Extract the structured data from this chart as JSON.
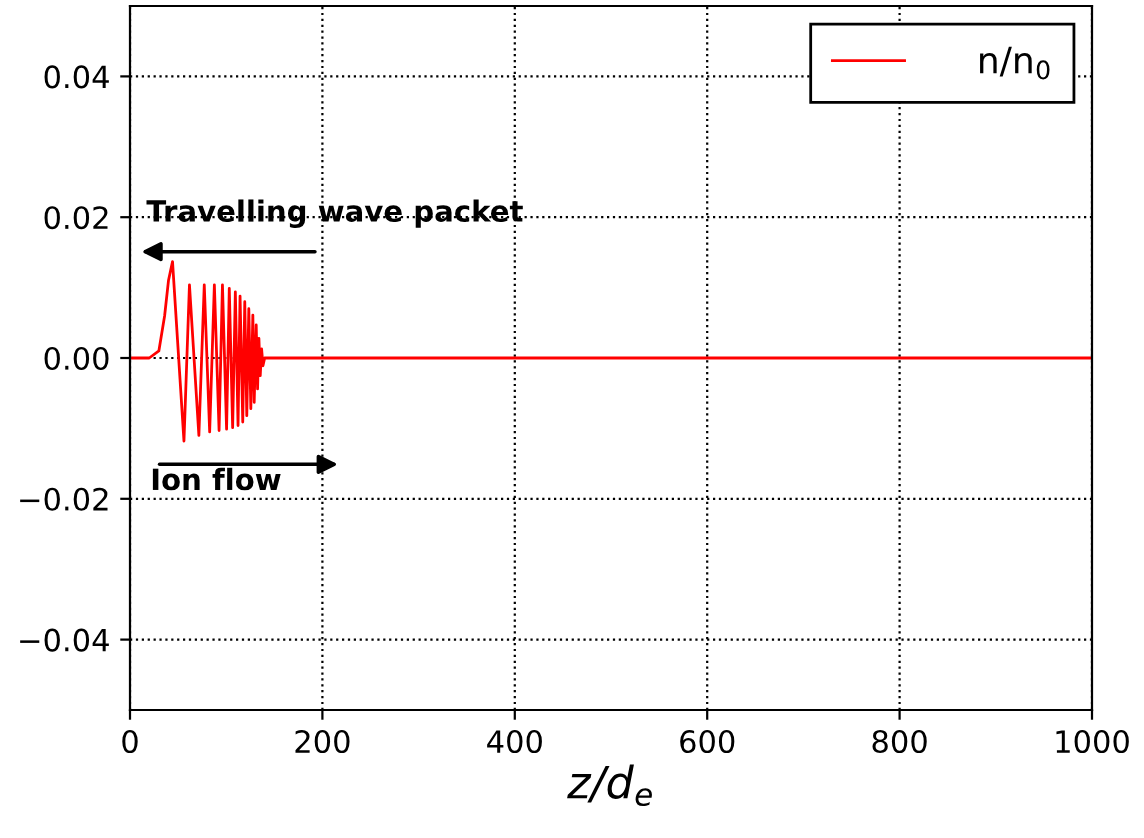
{
  "chart_data": {
    "type": "line",
    "xlabel": "z/d$_{e}$",
    "series": [
      {
        "name": "n/n$_{0}$",
        "color": "#ff0000",
        "x": [
          0,
          20,
          30,
          36,
          40,
          44.2,
          56.1,
          61.8,
          71.6,
          77.2,
          82.8,
          87.7,
          92.6,
          96.1,
          100.4,
          103.2,
          106.7,
          109.5,
          112.3,
          114.4,
          117.2,
          119.3,
          121.4,
          123.5,
          125.6,
          127.7,
          129.1,
          131.2,
          132.6,
          134.0,
          135.4,
          136.8,
          138.2,
          140,
          1000
        ],
        "values": [
          0,
          0,
          0.001,
          0.006,
          0.011,
          0.0137,
          -0.0118,
          0.0104,
          -0.011,
          0.0104,
          -0.0105,
          0.0104,
          -0.0103,
          0.0104,
          -0.0101,
          0.0099,
          -0.0099,
          0.0094,
          -0.0096,
          0.0088,
          -0.0091,
          0.008,
          -0.0082,
          0.007,
          -0.0072,
          0.0061,
          -0.0063,
          0.0047,
          -0.0044,
          0.0028,
          -0.0025,
          0.0013,
          -0.0011,
          0,
          0
        ]
      }
    ],
    "xlim": [
      0,
      1000
    ],
    "ylim": [
      -0.05,
      0.05
    ],
    "xticks": [
      0,
      200,
      400,
      600,
      800,
      1000
    ],
    "yticks": [
      {
        "value": -0.04,
        "label": "−0.04"
      },
      {
        "value": -0.02,
        "label": "−0.02"
      },
      {
        "value": 0,
        "label": "0.00"
      },
      {
        "value": 0.02,
        "label": "0.02"
      },
      {
        "value": 0.04,
        "label": "0.04"
      }
    ],
    "annotations": [
      "Travelling wave packet",
      "Ion flow"
    ],
    "grid": true,
    "legend": "top right",
    "line_style": "solid",
    "marker": "none"
  }
}
